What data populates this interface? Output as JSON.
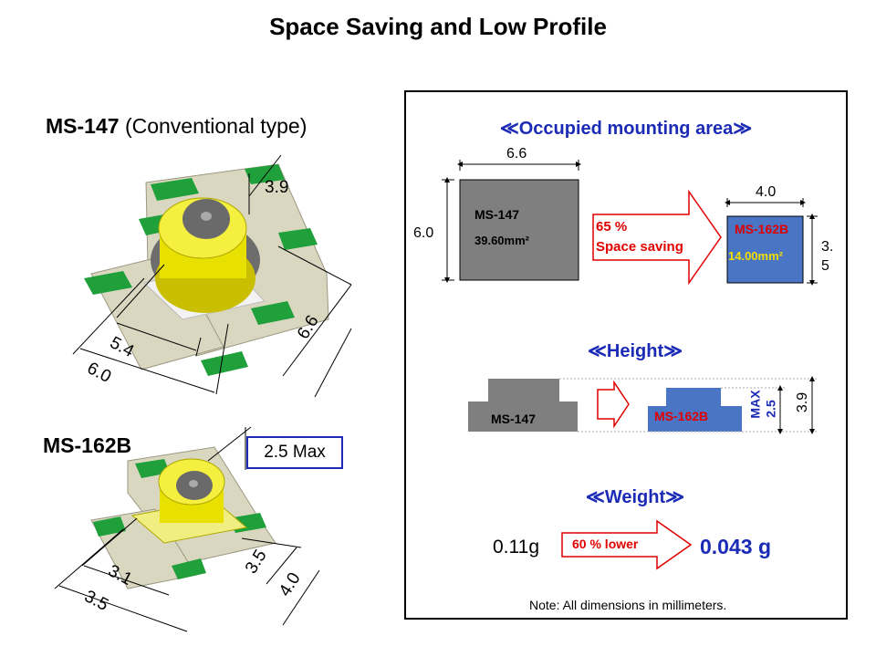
{
  "title": "Space Saving and Low Profile",
  "left": {
    "ms147": {
      "name": "MS-147",
      "type_note": "(Conventional type)",
      "dim_height": "3.9",
      "dim_54": "5.4",
      "dim_60": "6.0",
      "dim_66": "6.6"
    },
    "ms162b": {
      "name": "MS-162B",
      "max_label": "2.5 Max",
      "dim_31": "3.1",
      "dim_35a": "3.5",
      "dim_35b": "3.5",
      "dim_40": "4.0"
    }
  },
  "right": {
    "area": {
      "heading": "≪Occupied mounting area≫",
      "big_width": "6.6",
      "big_height": "6.0",
      "big_name": "MS-147",
      "big_area": "39.60mm²",
      "arrow_line1": "65 %",
      "arrow_line2": "Space saving",
      "small_width": "4.0",
      "small_height_a": "3.",
      "small_height_b": "5",
      "small_name": "MS-162B",
      "small_area": "14.00mm²"
    },
    "height": {
      "heading": "≪Height≫",
      "left_name": "MS-147",
      "right_name": "MS-162B",
      "max_text": "MAX",
      "max_value": "2.5",
      "total": "3.9"
    },
    "weight": {
      "heading": "≪Weight≫",
      "old": "0.11g",
      "arrow": "60 % lower",
      "new": "0.043 g"
    },
    "note": "Note: All dimensions in millimeters."
  },
  "colors": {
    "blue_text": "#1b2bb5",
    "red_text": "#e00000",
    "gray_box": "#7f7f7f",
    "blue_box": "#4a74c4",
    "pcb": "#d9d7bf",
    "pad_green": "#1fa03a",
    "connector": "#e8e000"
  }
}
